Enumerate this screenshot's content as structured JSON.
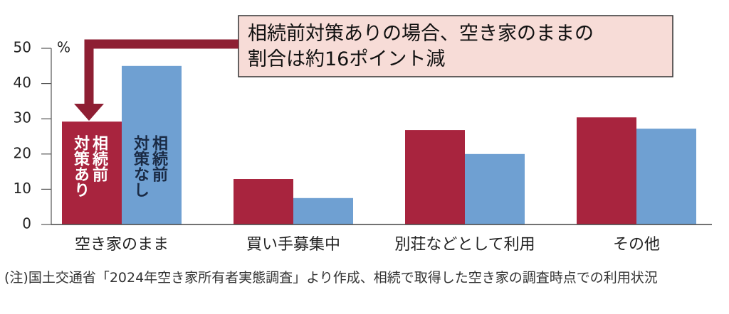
{
  "chart_data": {
    "type": "bar",
    "annotation": "相続前対策ありの場合、空き家のままの割合は約16ポイント減",
    "y_label": "%",
    "categories": [
      "空き家のまま",
      "買い手募集中",
      "別荘などとして利用",
      "その他"
    ],
    "series": [
      {
        "name": "相続前\n対策あり",
        "color": "#a8243e",
        "values": [
          29.2,
          12.9,
          26.8,
          30.4
        ]
      },
      {
        "name": "相続前\n対策なし",
        "color": "#6fa0d2",
        "values": [
          45.0,
          7.5,
          20.0,
          27.2
        ]
      }
    ],
    "ylim": [
      0,
      50
    ],
    "yticks": [
      0,
      10,
      20,
      30,
      40,
      50
    ],
    "note": "(注)国土交通省「2024年空き家所有者実態調査」より作成、相続で取得した空き家の調査時点での利用状況"
  }
}
